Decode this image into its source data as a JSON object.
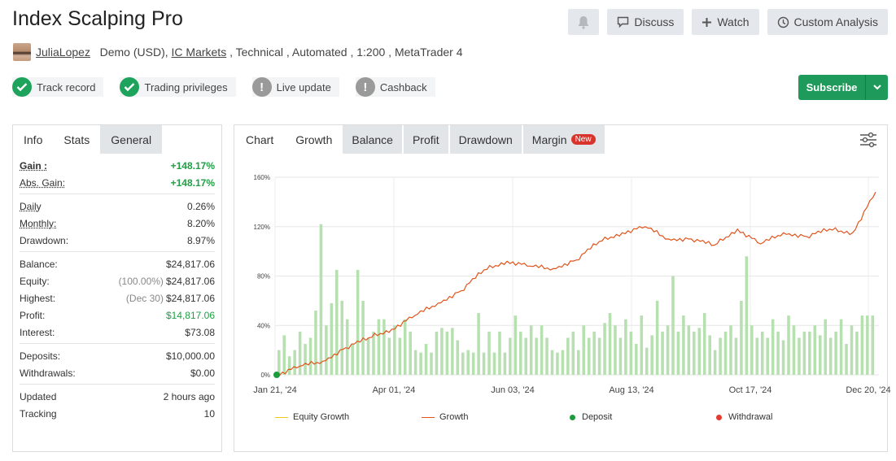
{
  "title": "Index Scalping Pro",
  "top_buttons": {
    "discuss": "Discuss",
    "watch": "Watch",
    "custom": "Custom Analysis"
  },
  "meta": {
    "user": "JuliaLopez",
    "account": "Demo (USD),",
    "broker": "IC Markets",
    "details": " , Technical , Automated , 1:200 , MetaTrader 4"
  },
  "badges": [
    {
      "label": "Track record",
      "status": "ok"
    },
    {
      "label": "Trading privileges",
      "status": "ok"
    },
    {
      "label": "Live update",
      "status": "warn"
    },
    {
      "label": "Cashback",
      "status": "warn"
    }
  ],
  "subscribe": "Subscribe",
  "left_tabs": [
    "Info",
    "Stats",
    "General"
  ],
  "stats": {
    "gain_k": "Gain :",
    "gain_v": "+148.17%",
    "absgain_k": "Abs. Gain:",
    "absgain_v": "+148.17%",
    "daily_k": "Daily",
    "daily_v": "0.26%",
    "monthly_k": "Monthly:",
    "monthly_v": "8.20%",
    "drawdown_k": "Drawdown:",
    "drawdown_v": "8.97%",
    "balance_k": "Balance:",
    "balance_v": "$24,817.06",
    "equity_k": "Equity:",
    "equity_pct": "(100.00%)",
    "equity_v": "$24,817.06",
    "highest_k": "Highest:",
    "highest_date": "(Dec 30)",
    "highest_v": "$24,817.06",
    "profit_k": "Profit:",
    "profit_v": "$14,817.06",
    "interest_k": "Interest:",
    "interest_v": "$73.08",
    "deposits_k": "Deposits:",
    "deposits_v": "$10,000.00",
    "withdrawals_k": "Withdrawals:",
    "withdrawals_v": "$0.00",
    "updated_k": "Updated",
    "updated_v": "2 hours ago",
    "tracking_k": "Tracking",
    "tracking_v": "10"
  },
  "chart_tabs": {
    "chart": "Chart",
    "growth": "Growth",
    "balance": "Balance",
    "profit": "Profit",
    "drawdown": "Drawdown",
    "margin": "Margin",
    "new_badge": "New"
  },
  "colors": {
    "growth_line": "#e0541b",
    "bars": "#b7e0b0",
    "deposit": "#1a9b3c",
    "withdrawal": "#e53b2e",
    "equity": "#f0c419",
    "subscribe": "#1e9b5a"
  },
  "legend": [
    "Equity Growth",
    "Growth",
    "Deposit",
    "Withdrawal"
  ],
  "chart_data": {
    "type": "line",
    "title": "",
    "ylim": [
      0,
      160
    ],
    "yticks": [
      "0%",
      "40%",
      "80%",
      "120%",
      "160%"
    ],
    "xticks": [
      "Jan 21, '24",
      "Apr 01, '24",
      "Jun 03, '24",
      "Aug 13, '24",
      "Oct 17, '24",
      "Dec 20, '24"
    ],
    "series": [
      {
        "name": "Growth",
        "x": [
          "Jan 21, '24",
          "Feb 05, '24",
          "Feb 20, '24",
          "Mar 05, '24",
          "Mar 15, '24",
          "Apr 01, '24",
          "Apr 15, '24",
          "May 01, '24",
          "May 15, '24",
          "Jun 03, '24",
          "Jun 15, '24",
          "Jul 01, '24",
          "Jul 15, '24",
          "Aug 01, '24",
          "Aug 13, '24",
          "Aug 28, '24",
          "Sep 10, '24",
          "Sep 25, '24",
          "Oct 05, '24",
          "Oct 17, '24",
          "Oct 30, '24",
          "Nov 10, '24",
          "Nov 22, '24",
          "Dec 05, '24",
          "Dec 15, '24",
          "Dec 20, '24",
          "Dec 30, '24"
        ],
        "values": [
          0,
          7,
          11,
          22,
          30,
          37,
          48,
          58,
          68,
          85,
          92,
          88,
          86,
          93,
          108,
          115,
          120,
          110,
          110,
          105,
          118,
          106,
          115,
          112,
          118,
          115,
          148
        ]
      },
      {
        "name": "Deposit",
        "x": [
          "Jan 21, '24"
        ],
        "values": [
          0
        ]
      }
    ],
    "bars_approx": [
      20,
      32,
      15,
      20,
      35,
      25,
      30,
      52,
      122,
      40,
      58,
      85,
      60,
      45,
      25,
      85,
      60,
      30,
      35,
      45,
      45,
      30,
      40,
      30,
      45,
      35,
      20,
      18,
      25,
      18,
      35,
      38,
      35,
      38,
      28,
      18,
      20,
      18,
      50,
      18,
      35,
      18,
      35,
      18,
      30,
      48,
      35,
      30,
      40,
      30,
      40,
      30,
      20,
      18,
      20,
      30,
      35,
      20,
      40,
      30,
      35,
      30,
      42,
      50,
      40,
      30,
      45,
      35,
      25,
      48,
      22,
      32,
      60,
      35,
      40,
      80,
      35,
      48,
      40,
      35,
      38,
      50,
      32,
      20,
      30,
      35,
      40,
      30,
      60,
      96,
      40,
      30,
      35,
      30,
      45,
      35,
      28,
      48,
      40,
      30,
      35,
      35,
      40,
      32,
      45,
      30,
      35,
      45,
      25,
      40,
      35,
      48,
      48,
      48
    ]
  }
}
